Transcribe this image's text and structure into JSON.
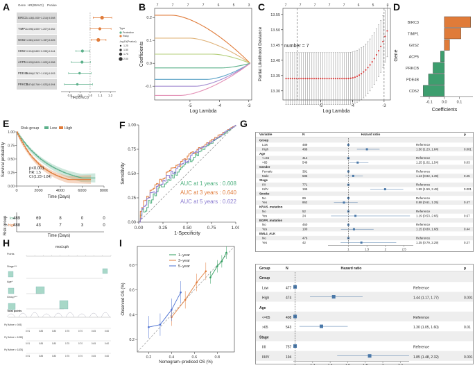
{
  "panel_labels": [
    "A",
    "B",
    "C",
    "D",
    "E",
    "F",
    "G",
    "H",
    "I"
  ],
  "panelA": {
    "headers": [
      "Gene",
      "HR(95%CI)",
      "Pvalue"
    ],
    "rows": [
      {
        "gene": "BIRC3",
        "hr_text": "1.118(1.030~1.214)",
        "p": "0.008",
        "hr": 1.118,
        "lo": 1.03,
        "hi": 1.214,
        "risk": true
      },
      {
        "gene": "TIMP1",
        "hr_text": "1.096(1.000~1.207)",
        "p": "0.052",
        "hr": 1.096,
        "lo": 1.0,
        "hi": 1.207,
        "risk": true
      },
      {
        "gene": "G0S2",
        "hr_text": "1.081(1.010~1.157)",
        "p": "0.025",
        "hr": 1.081,
        "lo": 1.01,
        "hi": 1.157,
        "risk": true
      },
      {
        "gene": "CD52",
        "hr_text": "0.924(0.859~0.995)",
        "p": "0.044",
        "hr": 0.924,
        "lo": 0.859,
        "hi": 0.995,
        "risk": false
      },
      {
        "gene": "ACP5",
        "hr_text": "0.920(0.815~1.003)",
        "p": "0.058",
        "hr": 0.92,
        "lo": 0.815,
        "hi": 1.003,
        "risk": false
      },
      {
        "gene": "PDE4B",
        "hr_text": "0.896(0.787~1.010)",
        "p": "0.093",
        "hr": 0.896,
        "lo": 0.787,
        "hi": 1.01,
        "risk": false
      },
      {
        "gene": "PRKCB",
        "hr_text": "0.874(0.746~1.023)",
        "p": "0.094",
        "hr": 0.874,
        "lo": 0.746,
        "hi": 1.023,
        "risk": false
      }
    ],
    "xlabel": "HR(95%CI)",
    "xticks": [
      "0.8",
      "0.9",
      "1.0",
      "1.1",
      "1.2"
    ],
    "legend_type_title": "Type",
    "legend_types": [
      "Protective",
      "Risky"
    ],
    "legend_size_title": "-log10(Pvalue)",
    "legend_sizes": [
      "1.25",
      "1.50",
      "1.75",
      "2.00"
    ],
    "colors": {
      "risky": "#e07b39",
      "protective": "#5bb08a"
    }
  },
  "panelB": {
    "ylabel": "Coefficients",
    "xlabel": "Log Lambda",
    "xticks": [
      "-5",
      "-4",
      "-3"
    ],
    "yticks": [
      "0.2",
      "0.1",
      "0.0",
      "-0.1"
    ],
    "top_axis": [
      "7",
      "7",
      "7",
      "7",
      "6",
      "5",
      "3"
    ]
  },
  "panelC": {
    "ylabel": "Partial Likelihood Deviance",
    "xlabel": "Log Lambda",
    "xticks": [
      "-5",
      "-4",
      "-3"
    ],
    "yticks": [
      "13.55",
      "13.50",
      "13.45",
      "13.40",
      "13.35",
      "13.30"
    ],
    "annotation": "number = 7",
    "top_axis": [
      "7",
      "7",
      "7",
      "7",
      "7",
      "6",
      "5",
      "3"
    ]
  },
  "panelD": {
    "ylabel": "Gene",
    "xlabel": "Coefficients",
    "genes": [
      "BIRC3",
      "TIMP1",
      "G0S2",
      "ACP5",
      "PRKCB",
      "PDE4B",
      "CD52"
    ],
    "values": [
      0.175,
      0.11,
      0.035,
      -0.025,
      -0.075,
      -0.105,
      -0.14
    ],
    "xticks": [
      "-0.1",
      "0.0",
      "0.1"
    ],
    "colors": {
      "pos": "#e07b39",
      "neg": "#3d9e6e"
    }
  },
  "panelE": {
    "legend_title": "Risk group",
    "legend": [
      "Low",
      "High"
    ],
    "ylabel": "Survival probability",
    "xlabel": "Time (Days)",
    "yticks": [
      "1.00",
      "0.75",
      "0.50",
      "0.25",
      "0.00"
    ],
    "xticks": [
      "0",
      "2000",
      "4000",
      "6000",
      "8000"
    ],
    "pvalue": "p<0.001",
    "hr": "HR: 1.5",
    "ci": "CI:(1.23~1.84)",
    "risk_title": "Risk group",
    "risk_rows": [
      {
        "group": "low",
        "counts": [
          "489",
          "69",
          "8",
          "0",
          "0"
        ]
      },
      {
        "group": "high",
        "counts": [
          "488",
          "43",
          "7",
          "3",
          "0"
        ]
      }
    ],
    "colors": {
      "low": "#5bb08a",
      "high": "#e07b39"
    }
  },
  "panelF": {
    "ylabel": "Sensitivity",
    "xlabel": "1-Specificity",
    "ticks": [
      "0.00",
      "0.25",
      "0.50",
      "0.75",
      "1.00"
    ],
    "auc": [
      {
        "label": "AUC at 1 years : 0.608",
        "color": "#4caf7d"
      },
      {
        "label": "AUC at 3 years : 0.640",
        "color": "#e07b39"
      },
      {
        "label": "AUC at 5 years : 0.622",
        "color": "#8a7bd0"
      }
    ]
  },
  "panelG": {
    "top": {
      "headers": [
        "Variable",
        "N",
        "Hazard ratio",
        "p"
      ],
      "rows": [
        {
          "var": "Group",
          "n": "",
          "ref": "",
          "p": "",
          "bold": true
        },
        {
          "var": "Low",
          "n": "489",
          "ref": "Reference",
          "p": "",
          "hr": null
        },
        {
          "var": "High",
          "n": "488",
          "ref": "1.50 (1.23, 1.84)",
          "p": "0.001",
          "hr": 1.5,
          "lo": 1.23,
          "hi": 1.84
        },
        {
          "var": "Age",
          "n": "",
          "ref": "",
          "p": "",
          "bold": true
        },
        {
          "var": "<=65",
          "n": "414",
          "ref": "Reference",
          "p": "",
          "hr": null
        },
        {
          "var": ">65",
          "n": "548",
          "ref": "1.25 (1.02, 1.54)",
          "p": "0.03",
          "hr": 1.25,
          "lo": 1.02,
          "hi": 1.54
        },
        {
          "var": "Gender",
          "n": "",
          "ref": "",
          "p": "",
          "bold": true
        },
        {
          "var": "Female",
          "n": "391",
          "ref": "Reference",
          "p": "",
          "hr": null
        },
        {
          "var": "Male",
          "n": "586",
          "ref": "1.13 (0.92, 1.39)",
          "p": "0.25",
          "hr": 1.13,
          "lo": 0.92,
          "hi": 1.39
        },
        {
          "var": "Stage",
          "n": "",
          "ref": "",
          "p": "",
          "bold": true
        },
        {
          "var": "I/II",
          "n": "771",
          "ref": "Reference",
          "p": "",
          "hr": null
        },
        {
          "var": "III/IV",
          "n": "195",
          "ref": "1.99 (1.59, 2.48)",
          "p": "0.001",
          "hr": 1.99,
          "lo": 1.59,
          "hi": 2.48
        },
        {
          "var": "Smoke",
          "n": "",
          "ref": "",
          "p": "",
          "bold": true
        },
        {
          "var": "No",
          "n": "89",
          "ref": "Reference",
          "p": "",
          "hr": null
        },
        {
          "var": "Yes",
          "n": "862",
          "ref": "0.88 (0.61, 1.25)",
          "p": "0.47",
          "hr": 0.88,
          "lo": 0.61,
          "hi": 1.25
        },
        {
          "var": "KRAS_mutation",
          "n": "",
          "ref": "",
          "p": "",
          "bold": true
        },
        {
          "var": "No",
          "n": "52",
          "ref": "Reference",
          "p": "",
          "hr": null
        },
        {
          "var": "Yes",
          "n": "24",
          "ref": "1.19 (0.53, 2.66)",
          "p": "0.67",
          "hr": 1.19,
          "lo": 0.53,
          "hi": 2.66
        },
        {
          "var": "EGFR_mutation",
          "n": "",
          "ref": "",
          "p": "",
          "bold": true
        },
        {
          "var": "No",
          "n": "460",
          "ref": "Reference",
          "p": "",
          "hr": null
        },
        {
          "var": "Yes",
          "n": "100",
          "ref": "1.15 (0.80, 1.68)",
          "p": "0.44",
          "hr": 1.15,
          "lo": 0.8,
          "hi": 1.68
        },
        {
          "var": "EML4_ALK",
          "n": "",
          "ref": "",
          "p": "",
          "bold": true
        },
        {
          "var": "No",
          "n": "476",
          "ref": "Reference",
          "p": "",
          "hr": null
        },
        {
          "var": "Yes",
          "n": "42",
          "ref": "1.35 (0.79, 2.29)",
          "p": "0.27",
          "hr": 1.35,
          "lo": 0.79,
          "hi": 2.29
        }
      ],
      "xticks": [
        "1",
        "1.5",
        "2",
        "2.5"
      ]
    },
    "bottom": {
      "headers": [
        "Group",
        "N",
        "Hazard ratio",
        "p"
      ],
      "rows": [
        {
          "var": "Group",
          "n": "",
          "ref": "",
          "p": "",
          "bold": true
        },
        {
          "var": "Low",
          "n": "477",
          "ref": "Reference",
          "p": "",
          "hr": null
        },
        {
          "var": "High",
          "n": "474",
          "ref": "1.44 (1.17, 1.77)",
          "p": "0.001",
          "hr": 1.44,
          "lo": 1.17,
          "hi": 1.77
        },
        {
          "var": "Age",
          "n": "",
          "ref": "",
          "p": "",
          "bold": true
        },
        {
          "var": "<=65",
          "n": "408",
          "ref": "Reference",
          "p": "",
          "hr": null
        },
        {
          "var": ">65",
          "n": "543",
          "ref": "1.30 (1.05, 1.60)",
          "p": "0.01",
          "hr": 1.3,
          "lo": 1.05,
          "hi": 1.6
        },
        {
          "var": "Stage",
          "n": "",
          "ref": "",
          "p": "",
          "bold": true
        },
        {
          "var": "I/II",
          "n": "757",
          "ref": "Reference",
          "p": "",
          "hr": null
        },
        {
          "var": "III/IV",
          "n": "194",
          "ref": "1.85 (1.48, 2.32)",
          "p": "0.001",
          "hr": 1.85,
          "lo": 1.48,
          "hi": 2.32
        }
      ],
      "xticks": [
        "1",
        "1.2",
        "1.4",
        "1.6",
        "1.8",
        "2",
        "2.2"
      ]
    },
    "box_color": "#4a78a8"
  },
  "panelH": {
    "title": "mod.cph",
    "row_labels": [
      "Points",
      "Stage***",
      "Age*",
      "Group***",
      "Total points"
    ],
    "prob_labels": [
      "Pr( futime > 365)",
      "Pr( futime > 1095)",
      "Pr( futime > 1825)"
    ],
    "prob_ticks": [
      "0.91",
      "0.85",
      "0.80",
      "0.75",
      "0.70",
      "0.65",
      "0.60"
    ]
  },
  "panelI": {
    "ylabel": "Observed OS (%)",
    "xlabel": "Nomogram−prediced OS (%)",
    "ticks": [
      "0.2",
      "0.4",
      "0.6",
      "0.8"
    ],
    "legend": [
      "1−year",
      "3−year",
      "5−year"
    ],
    "colors": [
      "#2f9e5e",
      "#e07b39",
      "#4a6fd0"
    ]
  }
}
